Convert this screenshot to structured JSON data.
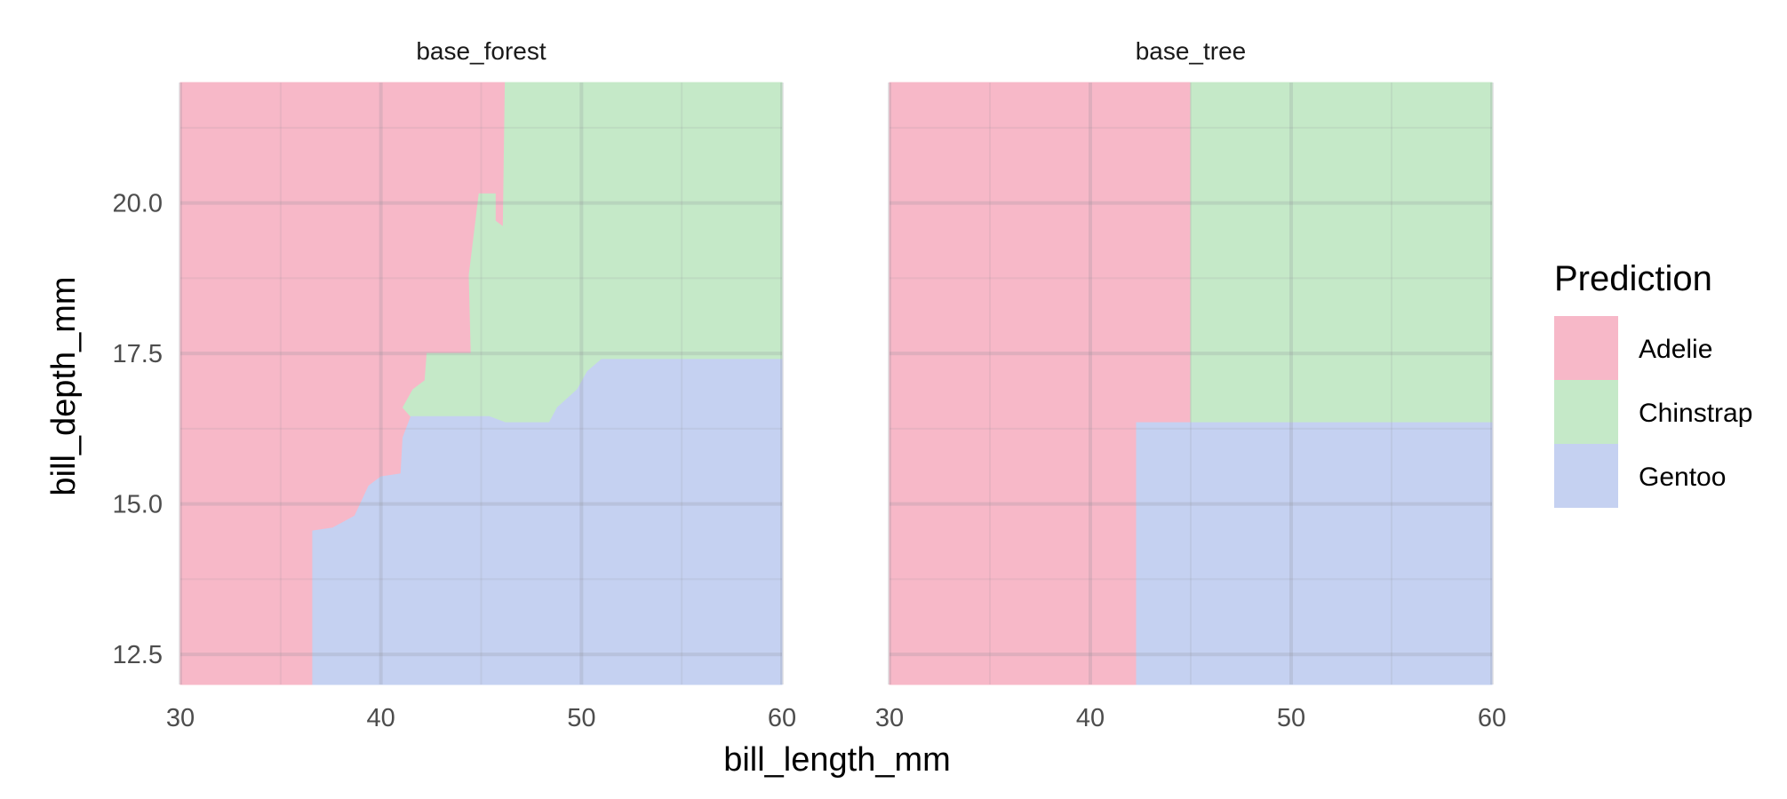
{
  "chart_data": {
    "type": "heatmap",
    "xlabel": "bill_length_mm",
    "ylabel": "bill_depth_mm",
    "xlim": [
      30,
      60
    ],
    "ylim": [
      12,
      22
    ],
    "x_ticks": [
      30,
      40,
      50,
      60
    ],
    "y_ticks": [
      12.5,
      15.0,
      17.5,
      20.0
    ],
    "y_tick_labels": [
      "12.5",
      "15.0",
      "17.5",
      "20.0"
    ],
    "grid": true,
    "legend": {
      "title": "Prediction",
      "position": "right",
      "entries": [
        {
          "label": "Adelie",
          "color": "#f7b8c8"
        },
        {
          "label": "Chinstrap",
          "color": "#c5e9c8"
        },
        {
          "label": "Gentoo",
          "color": "#c5d1f1"
        }
      ]
    },
    "panels": [
      {
        "title": "base_forest",
        "regions": [
          {
            "class": "Adelie",
            "polygon": [
              [
                30,
                12
              ],
              [
                36.6,
                12
              ],
              [
                36.6,
                14.55
              ],
              [
                37.6,
                14.6
              ],
              [
                38.7,
                14.8
              ],
              [
                39.4,
                15.3
              ],
              [
                40.0,
                15.45
              ],
              [
                41.0,
                15.5
              ],
              [
                41.1,
                16.1
              ],
              [
                41.5,
                16.45
              ],
              [
                44.3,
                16.45
              ],
              [
                44.3,
                17.05
              ],
              [
                44.8,
                16.9
              ],
              [
                44.8,
                17.6
              ],
              [
                44.9,
                20.15
              ],
              [
                45.7,
                20.15
              ],
              [
                45.7,
                19.7
              ],
              [
                46.1,
                19.6
              ],
              [
                46.2,
                22
              ],
              [
                30,
                22
              ]
            ]
          },
          {
            "class": "Chinstrap",
            "polygon": [
              [
                46.2,
                22
              ],
              [
                60,
                22
              ],
              [
                60,
                17.4
              ],
              [
                51.0,
                17.4
              ],
              [
                50.3,
                17.2
              ],
              [
                49.8,
                16.9
              ],
              [
                48.8,
                16.6
              ],
              [
                48.4,
                16.35
              ],
              [
                46.2,
                16.35
              ],
              [
                45.4,
                16.45
              ],
              [
                41.5,
                16.45
              ],
              [
                41.1,
                16.6
              ],
              [
                41.6,
                16.9
              ],
              [
                42.2,
                17.05
              ],
              [
                42.3,
                17.5
              ],
              [
                44.5,
                17.5
              ],
              [
                44.4,
                18.8
              ],
              [
                44.9,
                20.15
              ],
              [
                45.7,
                20.15
              ],
              [
                45.7,
                19.7
              ],
              [
                46.1,
                19.6
              ]
            ]
          },
          {
            "class": "Gentoo",
            "polygon": [
              [
                36.6,
                12
              ],
              [
                60,
                12
              ],
              [
                60,
                17.4
              ],
              [
                51.0,
                17.4
              ],
              [
                50.3,
                17.2
              ],
              [
                49.8,
                16.9
              ],
              [
                48.8,
                16.6
              ],
              [
                48.4,
                16.35
              ],
              [
                46.2,
                16.35
              ],
              [
                45.4,
                16.45
              ],
              [
                41.5,
                16.45
              ],
              [
                41.1,
                16.1
              ],
              [
                41.0,
                15.5
              ],
              [
                40.0,
                15.45
              ],
              [
                39.4,
                15.3
              ],
              [
                38.7,
                14.8
              ],
              [
                37.6,
                14.6
              ],
              [
                36.6,
                14.55
              ]
            ]
          }
        ]
      },
      {
        "title": "base_tree",
        "regions": [
          {
            "class": "Adelie",
            "polygon": [
              [
                30,
                12
              ],
              [
                42.3,
                12
              ],
              [
                42.3,
                16.35
              ],
              [
                45.0,
                16.35
              ],
              [
                45.0,
                22
              ],
              [
                30,
                22
              ]
            ]
          },
          {
            "class": "Chinstrap",
            "polygon": [
              [
                45.0,
                16.35
              ],
              [
                60,
                16.35
              ],
              [
                60,
                22
              ],
              [
                45.0,
                22
              ]
            ]
          },
          {
            "class": "Gentoo",
            "polygon": [
              [
                42.3,
                12
              ],
              [
                60,
                12
              ],
              [
                60,
                16.35
              ],
              [
                42.3,
                16.35
              ]
            ]
          }
        ]
      }
    ]
  }
}
